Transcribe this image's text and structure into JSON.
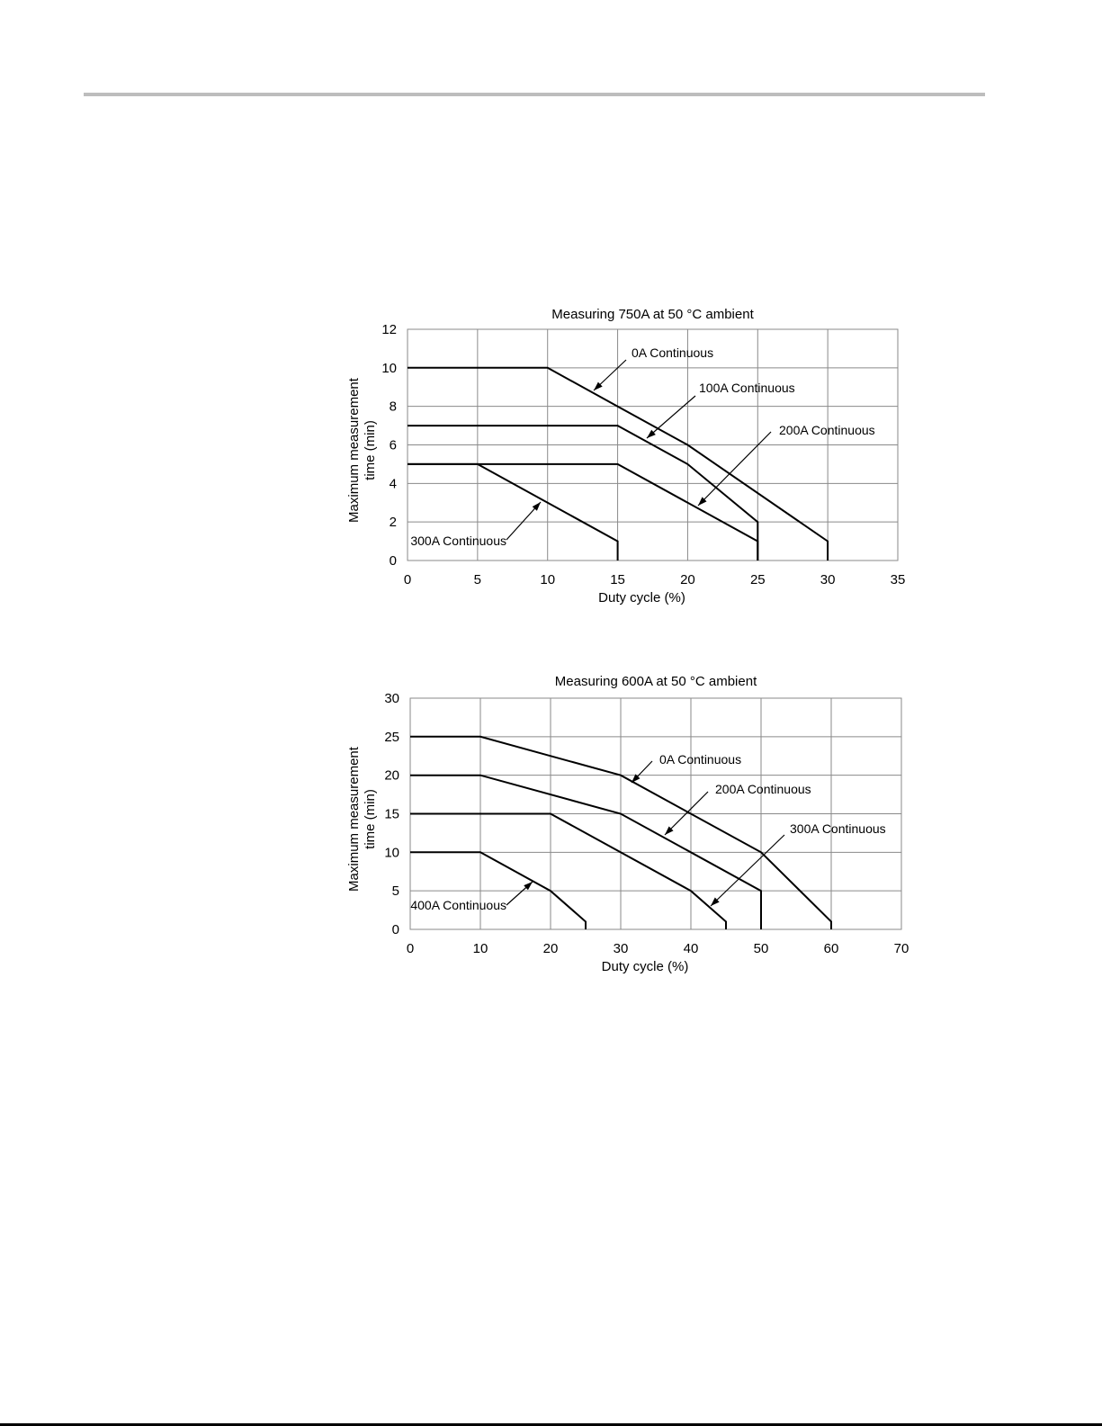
{
  "chart_data": [
    {
      "type": "line",
      "title": "Measuring 750A at 50 °C ambient",
      "xlabel": "Duty cycle (%)",
      "ylabel_line1": "Maximum measurement",
      "ylabel_line2": "time (min)",
      "xlim": [
        0,
        35
      ],
      "ylim": [
        0,
        12
      ],
      "xticks": [
        0,
        5,
        10,
        15,
        20,
        25,
        30,
        35
      ],
      "yticks": [
        0,
        2,
        4,
        6,
        8,
        10,
        12
      ],
      "grid": true,
      "series": [
        {
          "label": "0A Continuous",
          "x": [
            0,
            10,
            15,
            20,
            30,
            30
          ],
          "y": [
            10,
            10,
            8,
            6,
            1,
            0
          ]
        },
        {
          "label": "100A Continuous",
          "x": [
            0,
            15,
            20,
            25,
            25
          ],
          "y": [
            7,
            7,
            5,
            2,
            0
          ]
        },
        {
          "label": "200A Continuous",
          "x": [
            0,
            15,
            25,
            25
          ],
          "y": [
            5,
            5,
            1,
            0
          ]
        },
        {
          "label": "300A Continuous",
          "x": [
            0,
            5,
            15,
            15
          ],
          "y": [
            5,
            5,
            1,
            0
          ]
        }
      ],
      "annotations": [
        {
          "text": "0A Continuous",
          "series": 0
        },
        {
          "text": "100A Continuous",
          "series": 1
        },
        {
          "text": "200A Continuous",
          "series": 2
        },
        {
          "text": "300A Continuous",
          "series": 3
        }
      ]
    },
    {
      "type": "line",
      "title": "Measuring 600A at 50 °C ambient",
      "xlabel": "Duty cycle (%)",
      "ylabel_line1": "Maximum measurement",
      "ylabel_line2": "time (min)",
      "xlim": [
        0,
        70
      ],
      "ylim": [
        0,
        30
      ],
      "xticks": [
        0,
        10,
        20,
        30,
        40,
        50,
        60,
        70
      ],
      "yticks": [
        0,
        5,
        10,
        15,
        20,
        25,
        30
      ],
      "grid": true,
      "series": [
        {
          "label": "0A Continuous",
          "x": [
            0,
            10,
            30,
            50,
            60,
            60
          ],
          "y": [
            25,
            25,
            20,
            10,
            1,
            0
          ]
        },
        {
          "label": "200A Continuous",
          "x": [
            0,
            10,
            30,
            50,
            50
          ],
          "y": [
            20,
            20,
            15,
            5,
            0
          ]
        },
        {
          "label": "300A Continuous",
          "x": [
            0,
            20,
            40,
            45,
            45
          ],
          "y": [
            15,
            15,
            5,
            1,
            0
          ]
        },
        {
          "label": "400A Continuous",
          "x": [
            0,
            10,
            20,
            25,
            25
          ],
          "y": [
            10,
            10,
            5,
            1,
            0
          ]
        }
      ],
      "annotations": [
        {
          "text": "0A Continuous",
          "series": 0
        },
        {
          "text": "200A Continuous",
          "series": 1
        },
        {
          "text": "300A Continuous",
          "series": 2
        },
        {
          "text": "400A Continuous",
          "series": 3
        }
      ]
    }
  ]
}
